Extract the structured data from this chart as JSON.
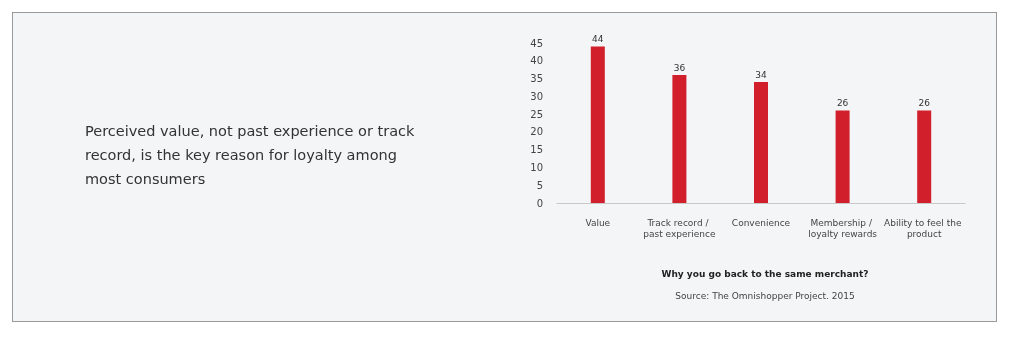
{
  "chart_data": {
    "type": "bar",
    "title": "Perceived value, not past experience or track record, is the key reason for loyalty among most consumers",
    "xlabel": "Why you go back to the same merchant?",
    "annotations": [
      "Source: The Omnishopper Project. 2015"
    ],
    "categories": [
      "Value",
      "Track record / past experience",
      "Convenience",
      "Membership / loyalty rewards",
      "Ability to feel the product"
    ],
    "values": [
      44,
      36,
      34,
      26,
      26
    ],
    "color": "#d11f2b",
    "ylim": [
      0,
      45
    ],
    "yticks": [
      0,
      5,
      10,
      15,
      20,
      25,
      30,
      35,
      40,
      45
    ],
    "grid": false,
    "data_labels": true
  }
}
